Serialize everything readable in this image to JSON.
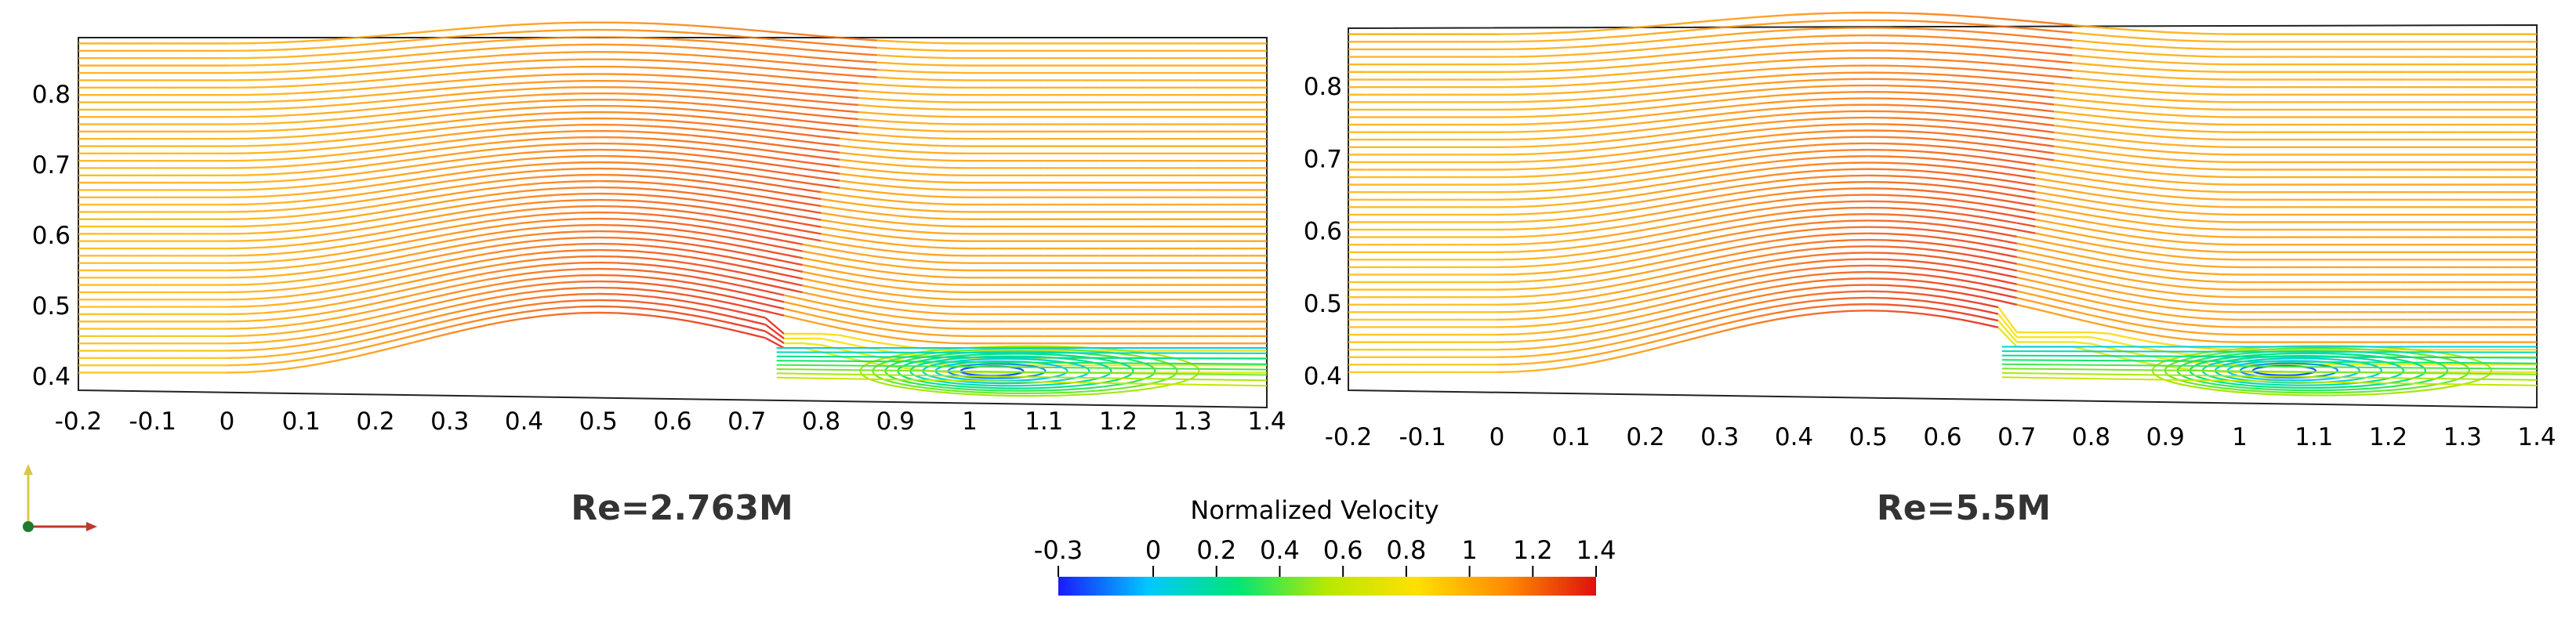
{
  "figure": {
    "panels": [
      {
        "id": "left",
        "label": "Re=2.763M",
        "x_ticks": [
          "-0.2",
          "-0.1",
          "0",
          "0.1",
          "0.2",
          "0.3",
          "0.4",
          "0.5",
          "0.6",
          "0.7",
          "0.8",
          "0.9",
          "1",
          "1.1",
          "1.2",
          "1.3",
          "1.4"
        ],
        "y_ticks": [
          "0.4",
          "0.5",
          "0.6",
          "0.7",
          "0.8"
        ],
        "xlim": [
          -0.2,
          1.4
        ],
        "ylim": [
          0.38,
          0.88
        ],
        "shock_x_bottom": 0.74,
        "shock_x_top": 0.88,
        "separation_start": 0.74,
        "vortex_center_x": 1.03
      },
      {
        "id": "right",
        "label": "Re=5.5M",
        "x_ticks": [
          "-0.2",
          "-0.1",
          "0",
          "0.1",
          "0.2",
          "0.3",
          "0.4",
          "0.5",
          "0.6",
          "0.7",
          "0.8",
          "0.9",
          "1",
          "1.1",
          "1.2",
          "1.3",
          "1.4"
        ],
        "y_ticks": [
          "0.4",
          "0.5",
          "0.6",
          "0.7",
          "0.8"
        ],
        "xlim": [
          -0.2,
          1.4
        ],
        "ylim": [
          0.38,
          0.88
        ],
        "shock_x_bottom": 0.68,
        "shock_x_top": 0.78,
        "separation_start": 0.68,
        "vortex_center_x": 1.06
      }
    ],
    "colorbar": {
      "title": "Normalized Velocity",
      "ticks": [
        "-0.3",
        "0",
        "0.2",
        "0.4",
        "0.6",
        "0.8",
        "1",
        "1.2",
        "1.4"
      ],
      "range": [
        -0.3,
        1.4
      ],
      "colormap": [
        "#1a1aff",
        "#00c8ff",
        "#00e676",
        "#b8e800",
        "#ffe000",
        "#ff8c00",
        "#e01010"
      ]
    }
  }
}
